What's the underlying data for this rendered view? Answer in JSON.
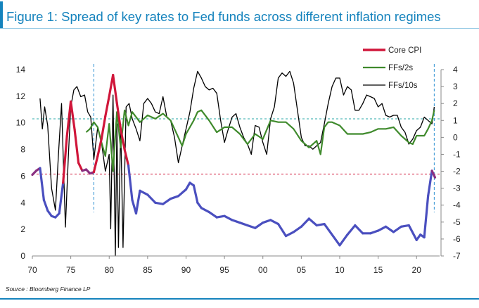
{
  "title": "Figure 1: Spread of key rates to Fed funds across different inflation regimes",
  "source": "Source : Bloomberg Finance LP",
  "colors": {
    "accent": "#1583bd",
    "core_cpi_high": "#d0163a",
    "core_cpi_low": "#4a4fbf",
    "core_cpi_mid": "#8a2f80",
    "ffs_2s": "#3f8a2c",
    "ffs_10s": "#000000",
    "hline_red": "#d0163a",
    "hline_teal": "#2aa7a7",
    "vline_blue": "#2b8fd1"
  },
  "chart_data": {
    "type": "line",
    "title": "Figure 1: Spread of key rates to Fed funds across different inflation regimes",
    "x_ticks": [
      "70",
      "75",
      "80",
      "85",
      "90",
      "95",
      "00",
      "05",
      "10",
      "15",
      "20"
    ],
    "x_tick_values": [
      1970,
      1975,
      1980,
      1985,
      1990,
      1995,
      2000,
      2005,
      2010,
      2015,
      2020
    ],
    "xlim": [
      1970,
      2023
    ],
    "left_axis": {
      "ylim": [
        0,
        14
      ],
      "ticks": [
        "0",
        "2",
        "4",
        "6",
        "8",
        "10",
        "12",
        "14"
      ]
    },
    "right_axis": {
      "ylim": [
        -7,
        4
      ],
      "ticks": [
        "-7",
        "-6",
        "-5",
        "-4",
        "-3",
        "-2",
        "-1",
        "0",
        "1",
        "2",
        "3",
        "4"
      ]
    },
    "legend": {
      "placement": "top-right",
      "entries": [
        {
          "label": "Core CPI",
          "style": "thick"
        },
        {
          "label": "FFs/2s",
          "style": "medium"
        },
        {
          "label": "FFs/10s",
          "style": "thin"
        }
      ]
    },
    "reference_lines": {
      "horizontal_left_axis": [
        {
          "value": 6.15,
          "color_key": "hline_red"
        },
        {
          "value": 10.3,
          "color_key": "hline_teal"
        }
      ],
      "vertical_x": [
        1978.0,
        2022.3
      ]
    },
    "core_cpi_high_threshold": 6.15,
    "series": [
      {
        "name": "Core CPI",
        "axis": "left",
        "x": [
          1970.0,
          1970.5,
          1971.0,
          1971.5,
          1972.0,
          1972.5,
          1973.0,
          1973.5,
          1974.0,
          1974.5,
          1975.0,
          1975.5,
          1976.0,
          1976.5,
          1977.0,
          1977.5,
          1978.0,
          1978.5,
          1979.0,
          1979.5,
          1980.0,
          1980.5,
          1981.0,
          1981.5,
          1982.0,
          1982.5,
          1983.0,
          1983.5,
          1984.0,
          1985.0,
          1986.0,
          1987.0,
          1988.0,
          1989.0,
          1990.0,
          1990.5,
          1991.0,
          1991.5,
          1992.0,
          1993.0,
          1994.0,
          1995.0,
          1996.0,
          1997.0,
          1998.0,
          1999.0,
          2000.0,
          2001.0,
          2002.0,
          2003.0,
          2004.0,
          2005.0,
          2006.0,
          2007.0,
          2008.0,
          2009.0,
          2010.0,
          2011.0,
          2012.0,
          2013.0,
          2014.0,
          2015.0,
          2016.0,
          2017.0,
          2018.0,
          2019.0,
          2020.0,
          2020.5,
          2021.0,
          2021.5,
          2022.0,
          2022.4
        ],
        "values": [
          6.1,
          6.4,
          6.6,
          4.2,
          3.4,
          3.0,
          2.9,
          3.2,
          5.5,
          9.0,
          11.6,
          9.5,
          7.0,
          6.4,
          6.5,
          6.2,
          6.3,
          7.5,
          8.8,
          10.5,
          12.0,
          13.6,
          11.5,
          9.5,
          8.0,
          6.8,
          4.2,
          3.2,
          4.9,
          4.6,
          4.0,
          3.9,
          4.3,
          4.5,
          5.0,
          5.5,
          5.3,
          4.0,
          3.6,
          3.3,
          2.9,
          3.0,
          2.7,
          2.5,
          2.3,
          2.1,
          2.5,
          2.7,
          2.4,
          1.5,
          1.8,
          2.2,
          2.8,
          2.3,
          2.4,
          1.6,
          0.8,
          1.6,
          2.3,
          1.7,
          1.7,
          1.9,
          2.2,
          1.8,
          2.2,
          2.3,
          1.2,
          1.6,
          1.4,
          4.5,
          6.4,
          5.9
        ]
      },
      {
        "name": "FFs/2s",
        "axis": "right",
        "x": [
          1977.0,
          1977.5,
          1978.0,
          1978.5,
          1979.0,
          1979.5,
          1980.0,
          1980.5,
          1981.0,
          1981.5,
          1982.0,
          1982.5,
          1983.0,
          1984.0,
          1985.0,
          1986.0,
          1987.0,
          1988.0,
          1989.0,
          1989.5,
          1990.0,
          1991.0,
          1991.5,
          1992.0,
          1993.0,
          1994.0,
          1995.0,
          1996.0,
          1997.0,
          1998.0,
          1999.0,
          2000.0,
          2001.0,
          2002.0,
          2003.0,
          2004.0,
          2005.0,
          2006.0,
          2007.0,
          2007.5,
          2008.0,
          2008.5,
          2009.0,
          2010.0,
          2011.0,
          2012.0,
          2013.0,
          2014.0,
          2015.0,
          2016.0,
          2017.0,
          2018.0,
          2019.0,
          2019.5,
          2020.0,
          2021.0,
          2021.5,
          2022.0,
          2022.3
        ],
        "values": [
          0.3,
          0.5,
          0.9,
          0.6,
          -0.3,
          -1.1,
          0.8,
          -2.0,
          1.5,
          -0.6,
          1.6,
          0.7,
          1.5,
          0.9,
          1.3,
          1.1,
          1.4,
          1.0,
          0.0,
          -0.5,
          0.2,
          1.0,
          1.5,
          1.6,
          1.0,
          0.3,
          0.6,
          0.6,
          0.2,
          -0.4,
          0.2,
          -0.1,
          1.0,
          0.9,
          0.9,
          0.5,
          -0.2,
          -0.6,
          -0.2,
          -1.0,
          0.6,
          0.9,
          0.9,
          0.7,
          0.2,
          0.2,
          0.2,
          0.3,
          0.5,
          0.5,
          0.6,
          0.1,
          -0.3,
          -0.4,
          0.1,
          0.1,
          0.5,
          1.0,
          1.6
        ]
      },
      {
        "name": "FFs/10s",
        "axis": "right",
        "x": [
          1971.0,
          1971.3,
          1971.6,
          1972.0,
          1972.5,
          1973.0,
          1973.4,
          1973.8,
          1974.3,
          1974.7,
          1975.0,
          1975.4,
          1975.8,
          1976.3,
          1976.8,
          1977.2,
          1977.6,
          1978.0,
          1978.5,
          1979.0,
          1979.5,
          1980.0,
          1980.2,
          1980.5,
          1980.8,
          1981.0,
          1981.2,
          1981.5,
          1981.8,
          1982.2,
          1982.6,
          1983.0,
          1983.5,
          1984.0,
          1984.5,
          1985.0,
          1985.5,
          1986.0,
          1986.5,
          1987.0,
          1987.5,
          1988.0,
          1988.5,
          1989.0,
          1989.5,
          1990.0,
          1990.5,
          1991.0,
          1991.5,
          1992.0,
          1992.5,
          1993.0,
          1993.5,
          1994.0,
          1994.5,
          1995.0,
          1995.5,
          1996.0,
          1996.5,
          1997.0,
          1997.5,
          1998.0,
          1998.5,
          1999.0,
          1999.5,
          2000.0,
          2000.5,
          2001.0,
          2001.5,
          2002.0,
          2002.5,
          2003.0,
          2003.5,
          2004.0,
          2004.5,
          2005.0,
          2005.5,
          2006.0,
          2006.5,
          2007.0,
          2007.5,
          2008.0,
          2008.5,
          2009.0,
          2009.5,
          2010.0,
          2010.5,
          2011.0,
          2011.5,
          2012.0,
          2012.5,
          2013.0,
          2013.5,
          2014.0,
          2014.5,
          2015.0,
          2015.5,
          2016.0,
          2016.5,
          2017.0,
          2017.5,
          2018.0,
          2018.5,
          2019.0,
          2019.5,
          2020.0,
          2020.5,
          2021.0,
          2021.5,
          2022.0,
          2022.3
        ],
        "values": [
          2.3,
          0.5,
          1.8,
          0.7,
          -3.0,
          -4.3,
          -1.0,
          2.0,
          -5.3,
          -1.0,
          1.8,
          2.8,
          3.0,
          2.4,
          2.5,
          1.5,
          1.2,
          -1.3,
          0.6,
          -0.3,
          -2.0,
          -1.0,
          -5.4,
          2.5,
          -7.0,
          0.8,
          -6.5,
          0.8,
          -6.5,
          1.8,
          2.0,
          1.1,
          0.5,
          -0.2,
          2.0,
          2.3,
          2.0,
          1.5,
          1.4,
          2.4,
          1.2,
          1.0,
          0.0,
          -1.5,
          -0.5,
          0.5,
          1.5,
          2.9,
          3.9,
          3.5,
          3.0,
          2.8,
          2.9,
          2.6,
          1.0,
          -0.3,
          0.5,
          1.2,
          1.4,
          0.6,
          0.0,
          -0.4,
          -1.0,
          0.7,
          0.6,
          -0.3,
          -1.0,
          1.1,
          1.8,
          3.5,
          3.8,
          3.6,
          3.9,
          3.2,
          1.6,
          0.0,
          -0.5,
          -0.5,
          -0.7,
          -0.5,
          -0.3,
          0.8,
          2.0,
          3.0,
          3.5,
          3.5,
          2.5,
          3.0,
          2.8,
          1.6,
          1.6,
          2.0,
          2.5,
          2.4,
          2.3,
          1.8,
          2.0,
          1.3,
          1.2,
          1.3,
          1.3,
          0.6,
          0.3,
          -0.4,
          -0.1,
          0.4,
          0.6,
          1.2,
          1.0,
          0.8,
          1.8
        ]
      }
    ]
  }
}
